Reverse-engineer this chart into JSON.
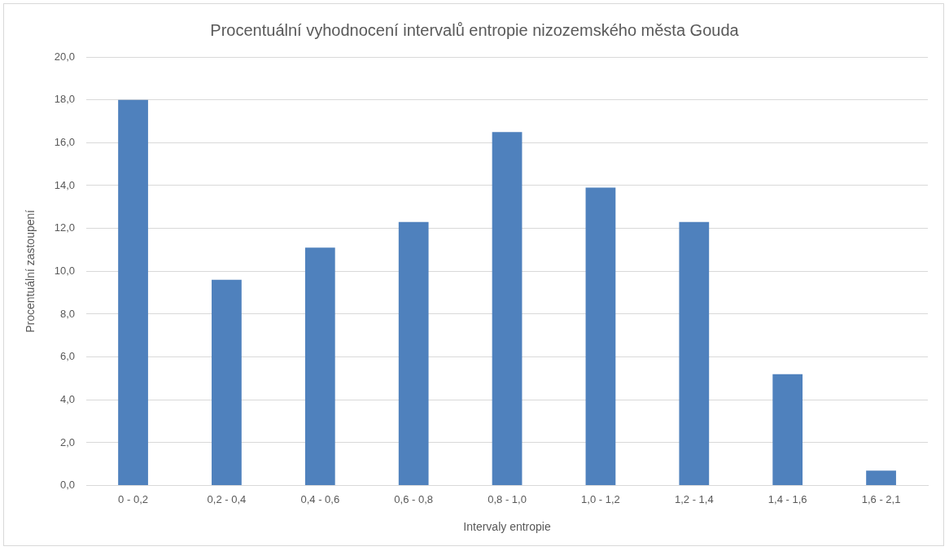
{
  "chart_data": {
    "type": "bar",
    "title": "Procentuální vyhodnocení intervalů entropie nizozemského města Gouda",
    "xlabel": "Intervaly entropie",
    "ylabel": "Procentuální zastoupení",
    "categories": [
      "0 - 0,2",
      "0,2 - 0,4",
      "0,4 - 0,6",
      "0,6 - 0,8",
      "0,8 - 1,0",
      "1,0 - 1,2",
      "1,2 - 1,4",
      "1,4 - 1,6",
      "1,6 - 2,1"
    ],
    "values": [
      18.0,
      9.6,
      11.1,
      12.3,
      16.5,
      13.9,
      12.3,
      5.2,
      0.7
    ],
    "color": "#4f81bd",
    "ylim": [
      0,
      20
    ],
    "yticks": [
      {
        "value": 0,
        "label": "0,0"
      },
      {
        "value": 2,
        "label": "2,0"
      },
      {
        "value": 4,
        "label": "4,0"
      },
      {
        "value": 6,
        "label": "6,0"
      },
      {
        "value": 8,
        "label": "8,0"
      },
      {
        "value": 10,
        "label": "10,0"
      },
      {
        "value": 12,
        "label": "12,0"
      },
      {
        "value": 14,
        "label": "14,0"
      },
      {
        "value": 16,
        "label": "16,0"
      },
      {
        "value": 18,
        "label": "18,0"
      },
      {
        "value": 20,
        "label": "20,0"
      }
    ],
    "grid": "y"
  }
}
